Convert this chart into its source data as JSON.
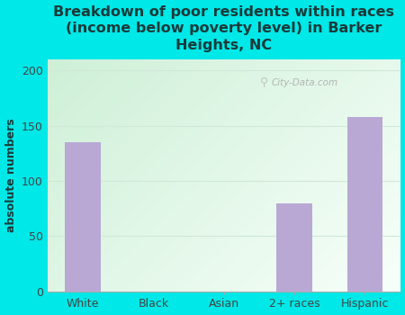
{
  "categories": [
    "White",
    "Black",
    "Asian",
    "2+ races",
    "Hispanic"
  ],
  "values": [
    135,
    0,
    0,
    80,
    158
  ],
  "bar_color": "#b9a8d4",
  "title": "Breakdown of poor residents within races\n(income below poverty level) in Barker\nHeights, NC",
  "ylabel": "absolute numbers",
  "ylim": [
    0,
    210
  ],
  "yticks": [
    0,
    50,
    100,
    150,
    200
  ],
  "bg_color": "#00e8e8",
  "plot_bg_green": "#c8ecd0",
  "plot_bg_white": "#f8fffc",
  "title_color": "#1a3a3a",
  "title_fontsize": 11.5,
  "axis_label_fontsize": 9,
  "tick_fontsize": 9,
  "watermark": "City-Data.com",
  "bar_width": 0.5,
  "grid_color": "#d0e8d8"
}
